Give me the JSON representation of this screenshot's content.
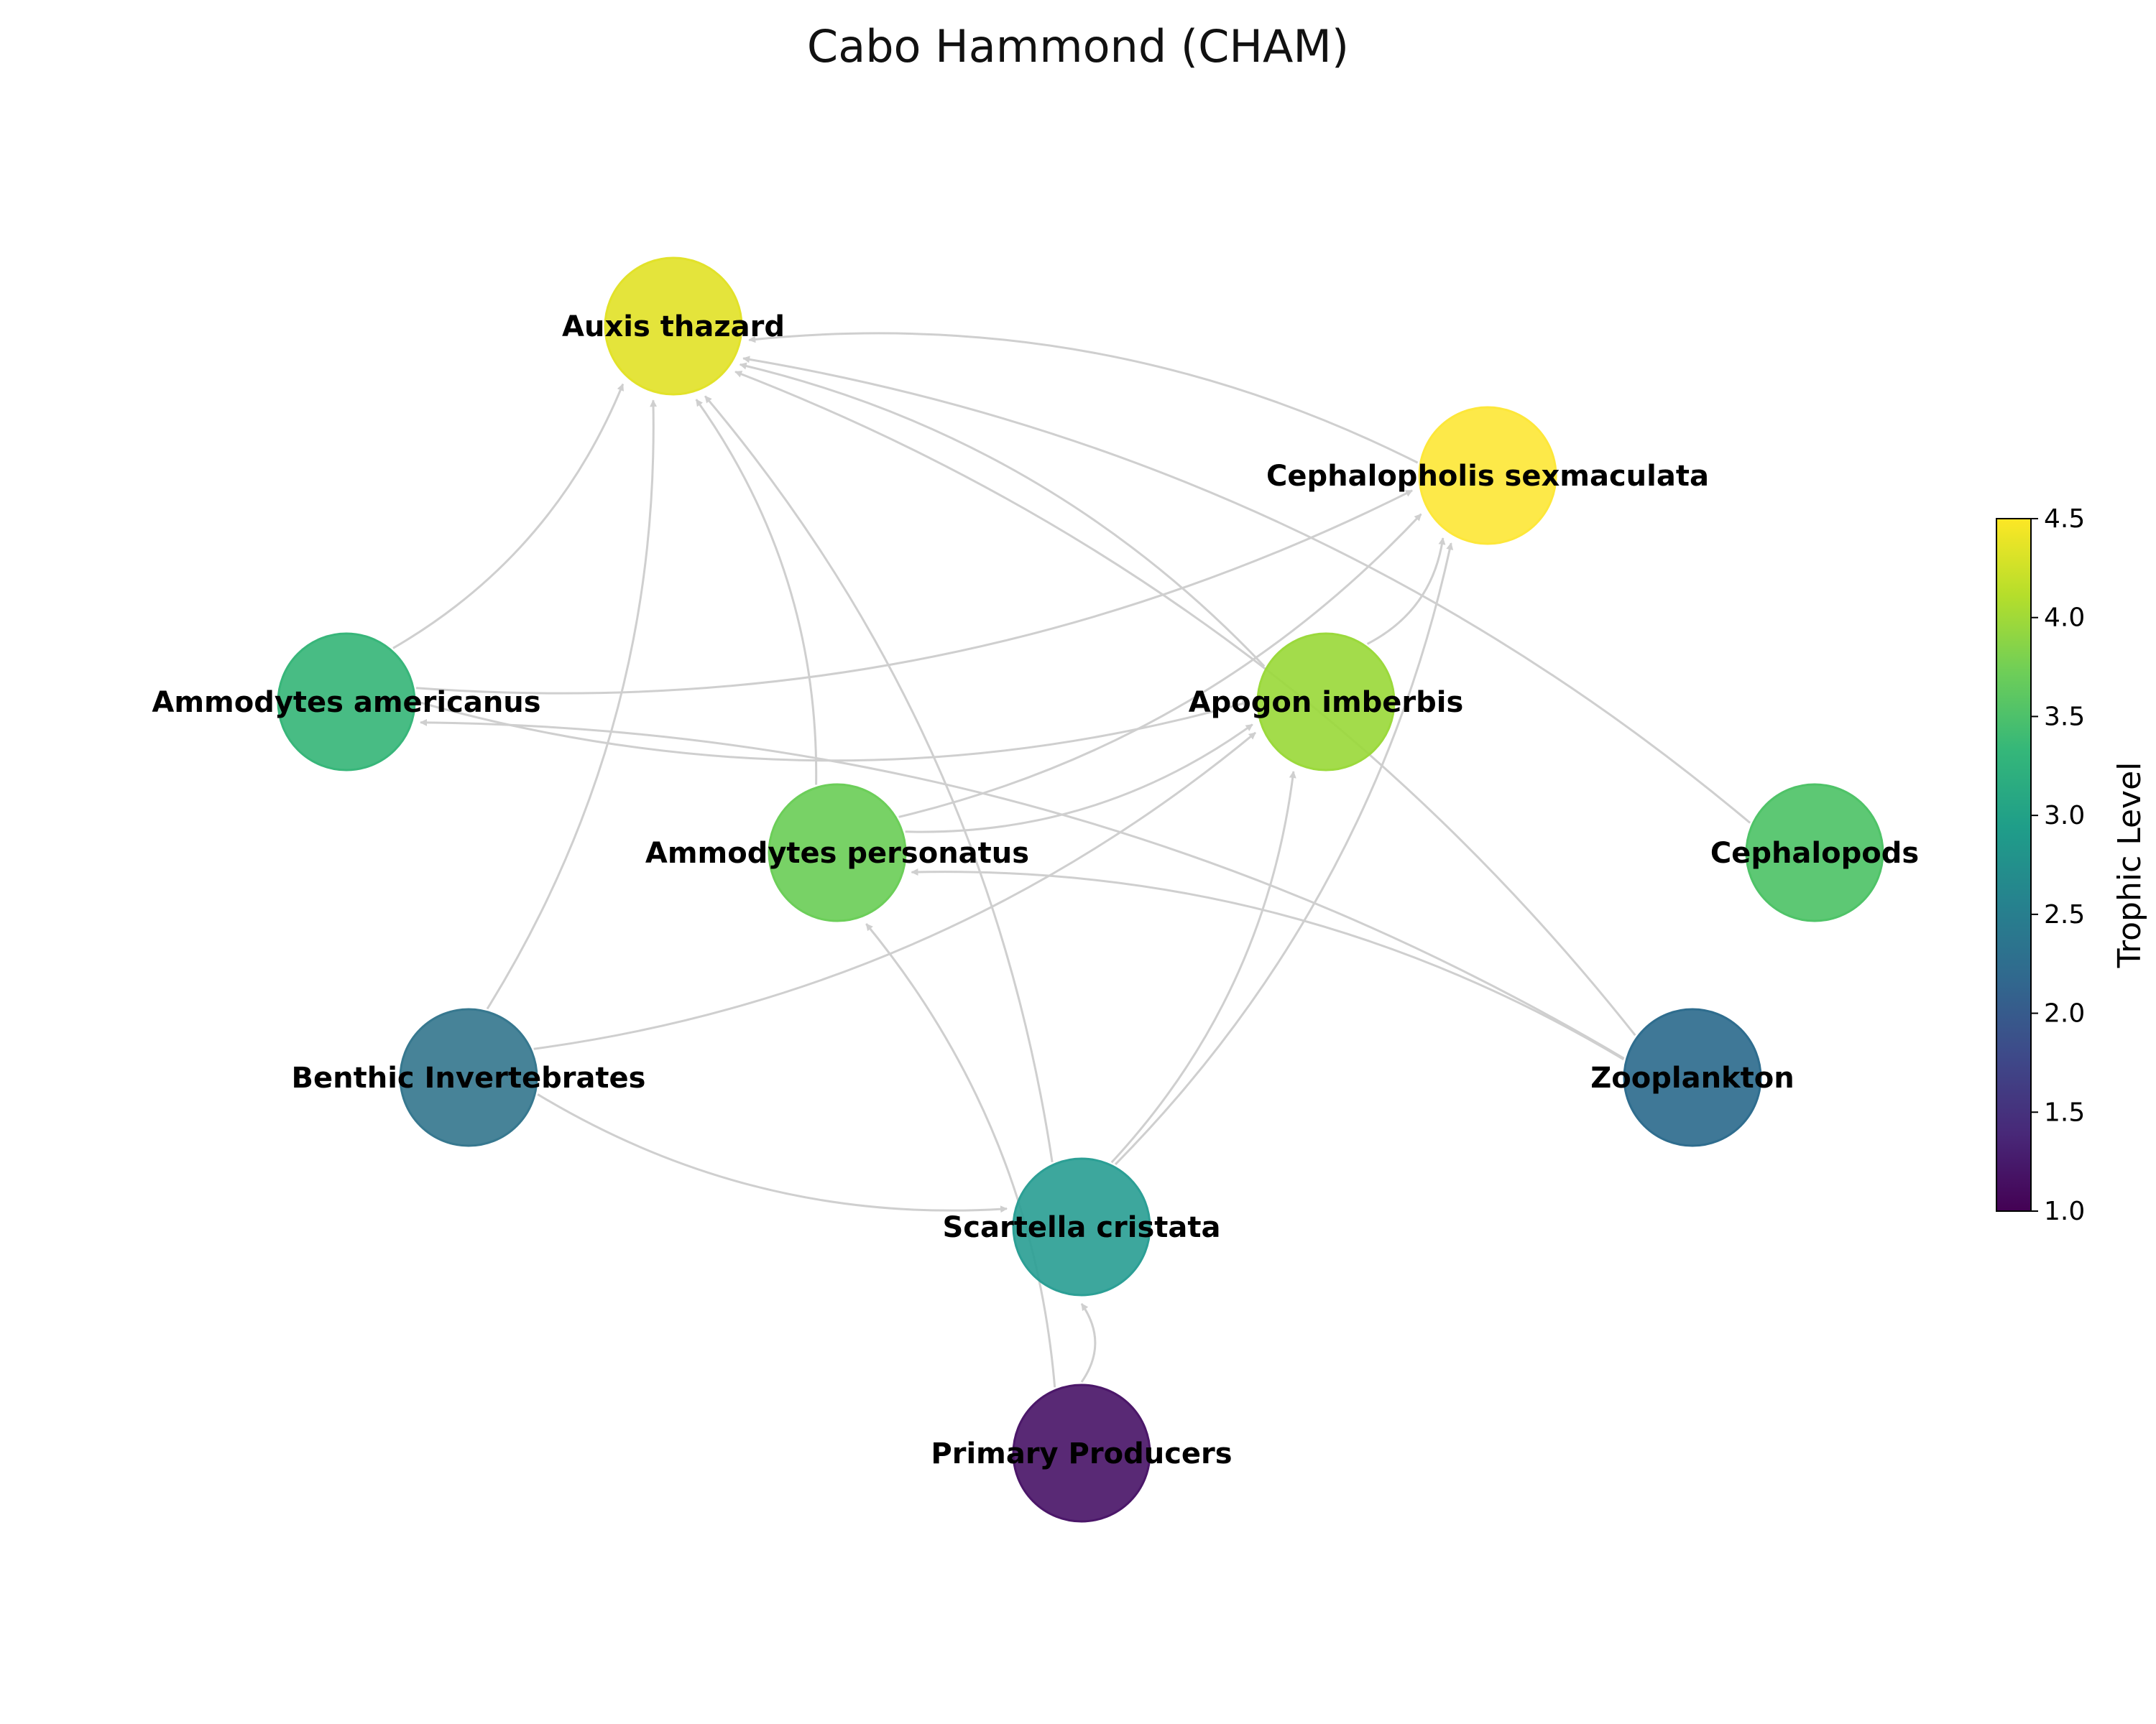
{
  "title": "Cabo Hammond (CHAM)",
  "nodes": [
    {
      "id": "auxis",
      "name": "Auxis thazard",
      "trophic_level": 4.2,
      "color": "#e2e22a"
    },
    {
      "id": "cephalopholis",
      "name": "Cephalopholis sexmaculata",
      "trophic_level": 4.5,
      "color": "#fde73a"
    },
    {
      "id": "amm_am",
      "name": "Ammodytes americanus",
      "trophic_level": 3.2,
      "color": "#38b67a"
    },
    {
      "id": "apogon",
      "name": "Apogon imberbis",
      "trophic_level": 3.9,
      "color": "#9bd93c"
    },
    {
      "id": "amm_pe",
      "name": "Ammodytes personatus",
      "trophic_level": 3.6,
      "color": "#6cce59"
    },
    {
      "id": "cephalopods",
      "name": "Cephalopods",
      "trophic_level": 3.5,
      "color": "#4fc368"
    },
    {
      "id": "benthic",
      "name": "Benthic Invertebrates",
      "trophic_level": 2.3,
      "color": "#37788f"
    },
    {
      "id": "zoo",
      "name": "Zooplankton",
      "trophic_level": 2.2,
      "color": "#2f6d8e"
    },
    {
      "id": "scartella",
      "name": "Scartella cristata",
      "trophic_level": 2.9,
      "color": "#2c9f95"
    },
    {
      "id": "primary",
      "name": "Primary Producers",
      "trophic_level": 1.0,
      "color": "#4b1769"
    }
  ],
  "edges": [
    {
      "from": "amm_am",
      "to": "auxis"
    },
    {
      "from": "benthic",
      "to": "auxis"
    },
    {
      "from": "amm_pe",
      "to": "auxis"
    },
    {
      "from": "scartella",
      "to": "auxis"
    },
    {
      "from": "apogon",
      "to": "auxis"
    },
    {
      "from": "zoo",
      "to": "auxis"
    },
    {
      "from": "cephalopods",
      "to": "auxis"
    },
    {
      "from": "cephalopholis",
      "to": "auxis"
    },
    {
      "from": "amm_am",
      "to": "cephalopholis"
    },
    {
      "from": "amm_pe",
      "to": "cephalopholis"
    },
    {
      "from": "apogon",
      "to": "cephalopholis"
    },
    {
      "from": "scartella",
      "to": "cephalopholis"
    },
    {
      "from": "amm_am",
      "to": "apogon"
    },
    {
      "from": "amm_pe",
      "to": "apogon"
    },
    {
      "from": "benthic",
      "to": "apogon"
    },
    {
      "from": "scartella",
      "to": "apogon"
    },
    {
      "from": "zoo",
      "to": "amm_am"
    },
    {
      "from": "zoo",
      "to": "amm_pe"
    },
    {
      "from": "primary",
      "to": "amm_pe"
    },
    {
      "from": "benthic",
      "to": "scartella"
    },
    {
      "from": "primary",
      "to": "scartella"
    }
  ],
  "colorbar": {
    "label": "Trophic Level",
    "min": 1.0,
    "max": 4.5,
    "ticks": [
      "1.0",
      "1.5",
      "2.0",
      "2.5",
      "3.0",
      "3.5",
      "4.0",
      "4.5"
    ],
    "colormap": [
      "#440154",
      "#482878",
      "#3e4989",
      "#31688e",
      "#26828e",
      "#1f9e89",
      "#35b779",
      "#6ece58",
      "#b5de2b",
      "#fde725"
    ]
  },
  "edge_color": "#cfcfcf"
}
